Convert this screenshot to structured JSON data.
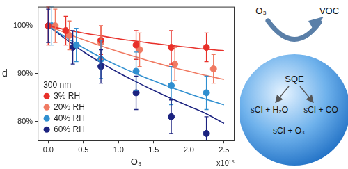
{
  "chart_data": {
    "type": "scatter",
    "x_label": "O₃",
    "y_label": "d",
    "annotations": [
      "x10¹⁵"
    ],
    "legend": "bottom left",
    "legend_title": "300 nm",
    "grid": false,
    "xlim": [
      -0.15,
      2.65
    ],
    "xticks": [
      {
        "value": 0,
        "label": "0.0"
      },
      0.5,
      {
        "value": 1,
        "label": "1.0"
      },
      1.5,
      {
        "value": 2,
        "label": "2.0"
      },
      2.5
    ],
    "ylim": [
      76,
      104
    ],
    "yticks": [
      {
        "value": 80,
        "label": "80%"
      },
      {
        "value": 90,
        "label": "90%"
      },
      {
        "value": 100,
        "label": "100%"
      }
    ],
    "series": [
      {
        "name": "3% RH",
        "color": "#e8302a",
        "marker": "circle",
        "x": [
          0,
          0.25,
          0.75,
          1.25,
          1.75,
          2.25
        ],
        "values": [
          100,
          99,
          97,
          96,
          95.5,
          95.5
        ],
        "errors": [
          4,
          3,
          3,
          3,
          3.5,
          3
        ],
        "fit": {
          "x": [
            0,
            0.25,
            0.5,
            0.75,
            1,
            1.25,
            1.5,
            1.75,
            2,
            2.25,
            2.5
          ],
          "values": [
            100,
            99.2,
            98.5,
            97.9,
            97.3,
            96.8,
            96.3,
            95.9,
            95.5,
            95.1,
            94.8
          ]
        }
      },
      {
        "name": "20% RH",
        "color": "#f07a62",
        "marker": "circle",
        "x": [
          0.1,
          0.3,
          0.75,
          1.3,
          1.8,
          2.35
        ],
        "values": [
          100,
          98,
          96.5,
          95,
          92,
          91
        ],
        "errors": [
          3.5,
          3,
          3.5,
          3.5,
          3.5,
          3
        ],
        "fit": {
          "x": [
            0,
            0.25,
            0.5,
            0.75,
            1,
            1.25,
            1.5,
            1.75,
            2,
            2.25,
            2.5
          ],
          "values": [
            100,
            98.5,
            97.1,
            95.8,
            94.6,
            93.5,
            92.4,
            91.4,
            90.5,
            89.6,
            88.8
          ]
        }
      },
      {
        "name": "40% RH",
        "color": "#2f8fd0",
        "marker": "circle",
        "x": [
          0.05,
          0.4,
          0.75,
          1.25,
          1.75,
          2.25
        ],
        "values": [
          100,
          96,
          93,
          90.5,
          87.5,
          86
        ],
        "errors": [
          4,
          3.5,
          4,
          4,
          4,
          3.5
        ],
        "fit": {
          "x": [
            0,
            0.25,
            0.5,
            0.75,
            1,
            1.25,
            1.5,
            1.75,
            2,
            2.25,
            2.5
          ],
          "values": [
            100,
            97.6,
            95.4,
            93.4,
            91.6,
            90,
            88.5,
            87.1,
            85.8,
            84.6,
            83.5
          ]
        }
      },
      {
        "name": "60% RH",
        "color": "#1c2380",
        "marker": "circle",
        "x": [
          0,
          0.35,
          0.75,
          1.25,
          1.75,
          2.25
        ],
        "values": [
          100,
          95.5,
          91.5,
          86,
          81,
          77.5
        ],
        "errors": [
          3.5,
          3.5,
          3.5,
          3.5,
          3.5,
          3.5
        ],
        "fit": {
          "x": [
            0,
            0.25,
            0.5,
            0.75,
            1,
            1.25,
            1.5,
            1.75,
            2,
            2.25,
            2.5
          ],
          "values": [
            100,
            97.2,
            94.6,
            92.3,
            90.2,
            88.3,
            86.5,
            84.8,
            83.2,
            81.6,
            79.6
          ]
        }
      }
    ]
  },
  "diagram": {
    "reactant": "O₃",
    "product": "VOC",
    "center": "SQE",
    "branches": [
      "sCI + H₂O",
      "sCI + CO",
      "sCI + O₃"
    ]
  }
}
